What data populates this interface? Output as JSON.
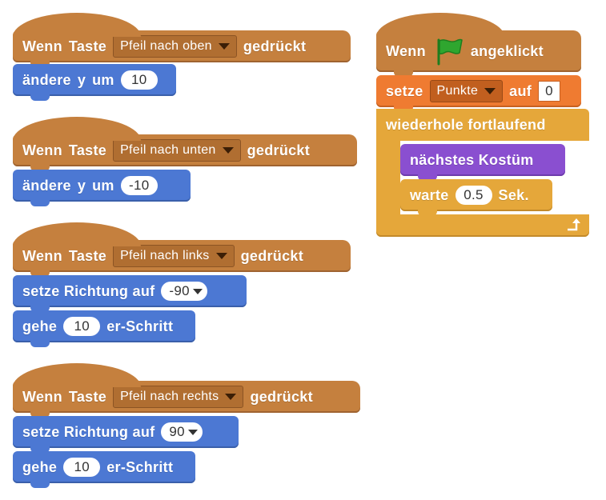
{
  "script1": {
    "when_label": "Wenn",
    "key_label": "Taste",
    "key_value": "Pfeil nach oben",
    "pressed_label": "gedrückt",
    "change_label": "ändere",
    "y_label": "y",
    "by_label": "um",
    "change_value": "10"
  },
  "script2": {
    "when_label": "Wenn",
    "key_label": "Taste",
    "key_value": "Pfeil nach unten",
    "pressed_label": "gedrückt",
    "change_label": "ändere",
    "y_label": "y",
    "by_label": "um",
    "change_value": "-10"
  },
  "script3": {
    "when_label": "Wenn",
    "key_label": "Taste",
    "key_value": "Pfeil nach links",
    "pressed_label": "gedrückt",
    "point_label": "setze Richtung auf",
    "point_value": "-90",
    "move_label": "gehe",
    "move_value": "10",
    "move_suffix": "er-Schritt"
  },
  "script4": {
    "when_label": "Wenn",
    "key_label": "Taste",
    "key_value": "Pfeil nach rechts",
    "pressed_label": "gedrückt",
    "point_label": "setze Richtung auf",
    "point_value": "90",
    "move_label": "gehe",
    "move_value": "10",
    "move_suffix": "er-Schritt"
  },
  "script5": {
    "when_label": "Wenn",
    "clicked_label": "angeklickt",
    "set_label": "setze",
    "var_value": "Punkte",
    "to_label": "auf",
    "set_value": "0",
    "forever_label": "wiederhole fortlaufend",
    "costume_label": "nächstes Kostüm",
    "wait_label": "warte",
    "wait_value": "0.5",
    "wait_suffix": "Sek."
  },
  "icons": {
    "flag": "green-flag-icon",
    "dropdown": "dropdown-arrow-icon",
    "loop": "loop-arrow-icon"
  },
  "colors": {
    "events": "#c5803e",
    "motion": "#4c78d3",
    "data": "#ef7b31",
    "looks": "#8a4fd0",
    "control": "#e5a73a",
    "flag": "#2fa62f"
  }
}
